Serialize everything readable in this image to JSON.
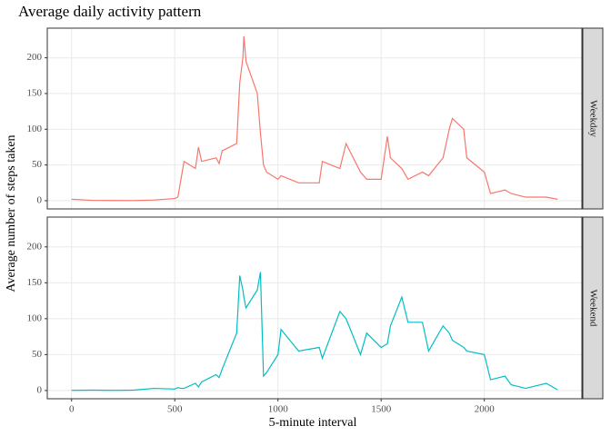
{
  "chart_data": {
    "type": "line",
    "title": "Average daily activity pattern",
    "x_label": "5-minute interval",
    "y_label": "Average number of steps taken",
    "x": [
      0,
      100,
      200,
      300,
      400,
      500,
      515,
      530,
      545,
      600,
      615,
      630,
      700,
      715,
      730,
      800,
      815,
      830,
      835,
      845,
      900,
      915,
      930,
      945,
      1000,
      1015,
      1100,
      1200,
      1215,
      1300,
      1330,
      1400,
      1430,
      1500,
      1530,
      1545,
      1600,
      1630,
      1700,
      1730,
      1800,
      1830,
      1845,
      1900,
      1915,
      2000,
      2030,
      2100,
      2130,
      2200,
      2300,
      2355
    ],
    "series": [
      {
        "name": "Weekday",
        "color": "#f8766d",
        "values": [
          2,
          0.5,
          0.3,
          0.2,
          1,
          3,
          5,
          30,
          55,
          45,
          75,
          55,
          60,
          52,
          70,
          80,
          165,
          200,
          230,
          195,
          150,
          95,
          50,
          40,
          30,
          35,
          25,
          25,
          55,
          45,
          80,
          40,
          30,
          30,
          90,
          60,
          45,
          30,
          40,
          35,
          60,
          100,
          115,
          100,
          60,
          40,
          10,
          15,
          10,
          5,
          5,
          2
        ]
      },
      {
        "name": "Weekend",
        "color": "#00bfc4",
        "values": [
          0.2,
          0.5,
          0.2,
          0.5,
          3,
          2,
          4,
          3,
          3,
          10,
          5,
          12,
          22,
          18,
          30,
          80,
          160,
          140,
          130,
          115,
          140,
          165,
          20,
          25,
          50,
          85,
          55,
          60,
          45,
          110,
          100,
          50,
          80,
          60,
          65,
          90,
          130,
          95,
          95,
          55,
          90,
          80,
          70,
          60,
          55,
          50,
          15,
          20,
          8,
          3,
          10,
          1
        ]
      }
    ],
    "xlim": [
      -117.75,
      2472.75
    ],
    "ylim": [
      -11.5,
      241.5
    ],
    "xticks": [
      0,
      500,
      1000,
      1500,
      2000
    ],
    "yticks": [
      0,
      50,
      100,
      150,
      200
    ],
    "grid": true
  }
}
